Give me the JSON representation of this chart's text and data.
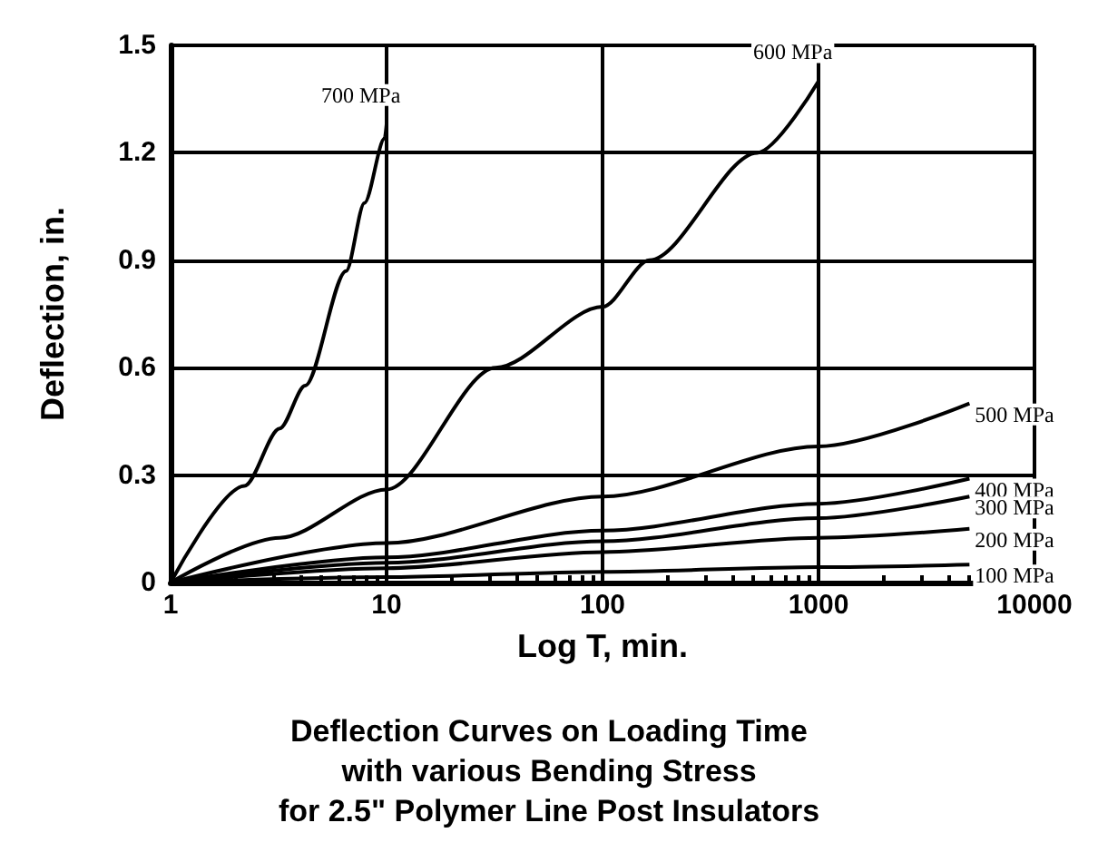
{
  "chart_data": {
    "type": "line",
    "title": "Deflection Curves on Loading Time\nwith various Bending Stress\nfor 2.5\" Polymer Line Post Insulators",
    "xlabel": "Log T, min.",
    "ylabel": "Deflection, in.",
    "log": "x",
    "grid": true,
    "legend": false,
    "marker": "none",
    "line_style": "solid",
    "xlim": [
      1,
      10000
    ],
    "xticks": [
      1,
      10,
      100,
      1000,
      10000
    ],
    "ylim": [
      0,
      1.5
    ],
    "yticks": [
      0,
      0.3,
      0.6,
      0.9,
      1.2,
      1.5
    ],
    "series": [
      {
        "name": "700 MPa",
        "color": "#000000",
        "x": [
          1,
          2.2,
          3.2,
          4.2,
          6.5,
          7.9,
          9.8,
          10
        ],
        "values": [
          0,
          0.27,
          0.43,
          0.55,
          0.87,
          1.06,
          1.24,
          1.28
        ]
      },
      {
        "name": "600 MPa",
        "color": "#000000",
        "x": [
          1,
          3.2,
          10,
          32,
          100,
          165,
          520,
          1000
        ],
        "values": [
          0,
          0.125,
          0.26,
          0.6,
          0.77,
          0.9,
          1.2,
          1.4
        ]
      },
      {
        "name": "500 MPa",
        "color": "#000000",
        "x": [
          1,
          10,
          100,
          1000,
          5000
        ],
        "values": [
          0,
          0.11,
          0.24,
          0.38,
          0.5
        ]
      },
      {
        "name": "400 MPa",
        "color": "#000000",
        "x": [
          1,
          10,
          100,
          1000,
          5000
        ],
        "values": [
          0,
          0.07,
          0.145,
          0.22,
          0.29
        ]
      },
      {
        "name": "300 MPa",
        "color": "#000000",
        "x": [
          1,
          10,
          100,
          1000,
          5000
        ],
        "values": [
          0,
          0.055,
          0.115,
          0.18,
          0.24
        ]
      },
      {
        "name": "200 MPa",
        "color": "#000000",
        "x": [
          1,
          10,
          100,
          1000,
          5000
        ],
        "values": [
          0,
          0.04,
          0.085,
          0.125,
          0.15
        ]
      },
      {
        "name": "100 MPa",
        "color": "#000000",
        "x": [
          1,
          10,
          100,
          1000,
          5000
        ],
        "values": [
          0,
          0.015,
          0.03,
          0.043,
          0.05
        ]
      }
    ]
  }
}
